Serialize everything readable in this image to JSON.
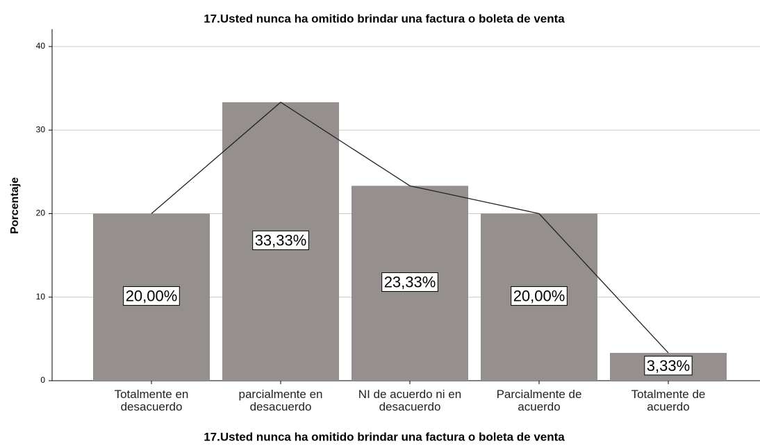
{
  "chart_data": {
    "type": "bar",
    "title": "17.Usted nunca ha omitido brindar una factura o boleta de venta",
    "x_label": "17.Usted nunca ha omitido brindar una factura o boleta de venta",
    "y_label": "Porcentaje",
    "categories": [
      "Totalmente en desacuerdo",
      "parcialmente en desacuerdo",
      "NI de acuerdo ni en desacuerdo",
      "Parcialmente de acuerdo",
      "Totalmente de acuerdo"
    ],
    "values": [
      20.0,
      33.33,
      23.33,
      20.0,
      3.33
    ],
    "value_labels": [
      "20,00%",
      "33,33%",
      "23,33%",
      "20,00%",
      "3,33%"
    ],
    "color": "#958f8d",
    "overlay_line": true,
    "line_color": "#222222",
    "ylim": [
      0,
      40
    ],
    "yticks": [
      0,
      10,
      20,
      30,
      40
    ],
    "grid": true
  }
}
